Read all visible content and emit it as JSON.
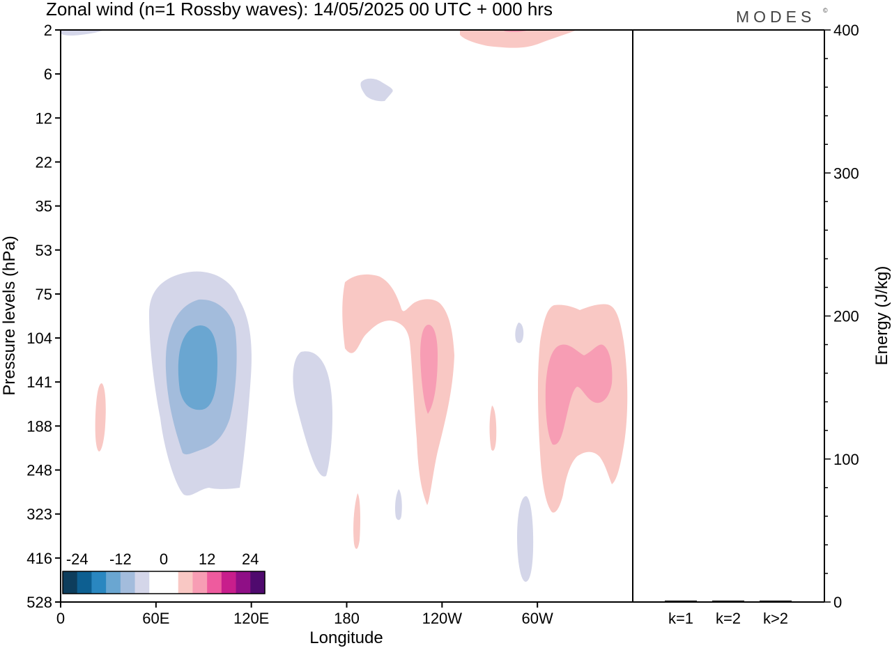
{
  "title": "Zonal wind (n=1 Rossby waves):  14/05/2025  00 UTC  + 000 hrs",
  "brand": "MODES",
  "brand_mark": "©",
  "chart_data": [
    {
      "type": "heatmap",
      "title": "Zonal wind (n=1 Rossby waves):  14/05/2025  00 UTC  + 000 hrs",
      "xlabel": "Longitude",
      "ylabel": "Pressure levels (hPa)",
      "x_ticks": [
        "0",
        "60E",
        "120E",
        "180",
        "120W",
        "60W"
      ],
      "x_range_deg": [
        0,
        360
      ],
      "y_ticks": [
        "2",
        "6",
        "12",
        "22",
        "35",
        "53",
        "75",
        "104",
        "141",
        "188",
        "248",
        "323",
        "416",
        "528"
      ],
      "colorbar": {
        "labels": [
          "-24",
          "-12",
          "0",
          "12",
          "24"
        ],
        "colors": [
          "#0d3d5c",
          "#0d5f91",
          "#2a87c0",
          "#6aa6d1",
          "#a3bcdc",
          "#d4d6e9",
          "#ffffff",
          "#ffffff",
          "#f9c8c4",
          "#f79db4",
          "#ee5b9e",
          "#c81e8c",
          "#8f0f86",
          "#4f0a6e"
        ]
      },
      "features": [
        {
          "sign": "negative",
          "lon": 80,
          "p_hpa": 141,
          "level": -3
        },
        {
          "sign": "negative",
          "lon": 160,
          "p_hpa": 188,
          "level": -1
        },
        {
          "sign": "negative",
          "lon": 195,
          "p_hpa": 6,
          "level": -1
        },
        {
          "sign": "negative",
          "lon": 293,
          "p_hpa": 416,
          "level": -1
        },
        {
          "sign": "positive",
          "lon": 205,
          "p_hpa": 104,
          "level": 1
        },
        {
          "sign": "positive",
          "lon": 232,
          "p_hpa": 141,
          "level": 2
        },
        {
          "sign": "positive",
          "lon": 330,
          "p_hpa": 141,
          "level": 2
        },
        {
          "sign": "positive",
          "lon": 12,
          "p_hpa": 188,
          "level": 1
        },
        {
          "sign": "positive",
          "lon": 285,
          "p_hpa": 2,
          "level": 1
        }
      ]
    },
    {
      "type": "bar",
      "ylabel": "Energy (J/kg)",
      "categories": [
        "k=1",
        "k=2",
        "k>2"
      ],
      "values": [
        1,
        1,
        1
      ],
      "ylim": [
        0,
        400
      ],
      "y_ticks": [
        "0",
        "100",
        "200",
        "300",
        "400"
      ]
    }
  ]
}
